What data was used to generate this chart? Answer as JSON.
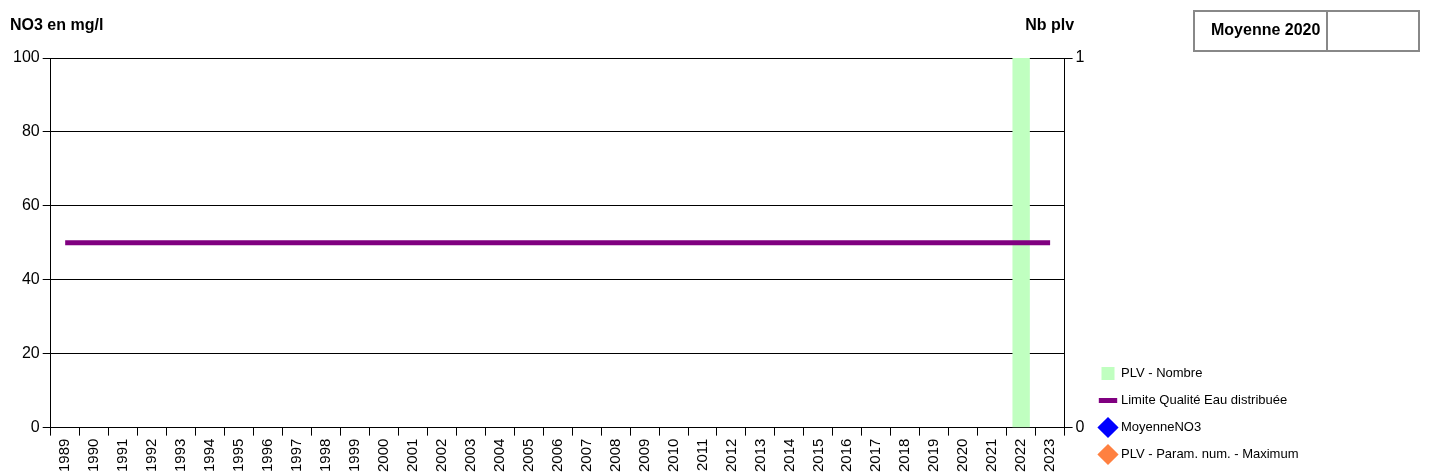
{
  "chart_data": {
    "type": "bar",
    "ylabel": "NO3 en mg/l",
    "y2label": "Nb plv",
    "categories": [
      "1989",
      "1990",
      "1991",
      "1992",
      "1993",
      "1994",
      "1995",
      "1996",
      "1997",
      "1998",
      "1999",
      "2000",
      "2001",
      "2002",
      "2003",
      "2004",
      "2005",
      "2006",
      "2007",
      "2008",
      "2009",
      "2010",
      "2011",
      "2012",
      "2013",
      "2014",
      "2015",
      "2016",
      "2017",
      "2018",
      "2019",
      "2020",
      "2021",
      "2022",
      "2023"
    ],
    "series": [
      {
        "name": "PLV - Nombre",
        "axis": "y2",
        "color": "#c0ffc0",
        "values": [
          null,
          null,
          null,
          null,
          null,
          null,
          null,
          null,
          null,
          null,
          null,
          null,
          null,
          null,
          null,
          null,
          null,
          null,
          null,
          null,
          null,
          null,
          null,
          null,
          null,
          null,
          null,
          null,
          null,
          null,
          null,
          null,
          null,
          1,
          null
        ]
      },
      {
        "name": "Limite Qualité Eau distribuée",
        "type": "line",
        "color": "#800080",
        "marker": "none",
        "values": [
          50,
          50,
          50,
          50,
          50,
          50,
          50,
          50,
          50,
          50,
          50,
          50,
          50,
          50,
          50,
          50,
          50,
          50,
          50,
          50,
          50,
          50,
          50,
          50,
          50,
          50,
          50,
          50,
          50,
          50,
          50,
          50,
          50,
          50,
          50
        ]
      },
      {
        "name": "MoyenneNO3",
        "type": "line",
        "color": "#0000ff",
        "marker": "diamond",
        "values": [
          null,
          null,
          null,
          null,
          null,
          null,
          null,
          null,
          null,
          null,
          null,
          null,
          null,
          null,
          null,
          null,
          null,
          null,
          null,
          null,
          null,
          null,
          null,
          null,
          null,
          null,
          null,
          null,
          null,
          null,
          null,
          null,
          null,
          null,
          null
        ]
      },
      {
        "name": "PLV - Param. num. - Maximum",
        "type": "line",
        "color": "#ff8040",
        "marker": "diamond",
        "values": [
          null,
          null,
          null,
          null,
          null,
          null,
          null,
          null,
          null,
          null,
          null,
          null,
          null,
          null,
          null,
          null,
          null,
          null,
          null,
          null,
          null,
          null,
          null,
          null,
          null,
          null,
          null,
          null,
          null,
          null,
          null,
          null,
          null,
          null,
          null
        ]
      }
    ],
    "ylim": [
      0,
      100
    ],
    "yticks": [
      0,
      20,
      40,
      60,
      80,
      100
    ],
    "y2lim": [
      0,
      1
    ],
    "y2ticks": [
      0,
      1
    ],
    "grid": "y",
    "legend": "right",
    "annotations": [
      "Moyenne 2020"
    ]
  }
}
